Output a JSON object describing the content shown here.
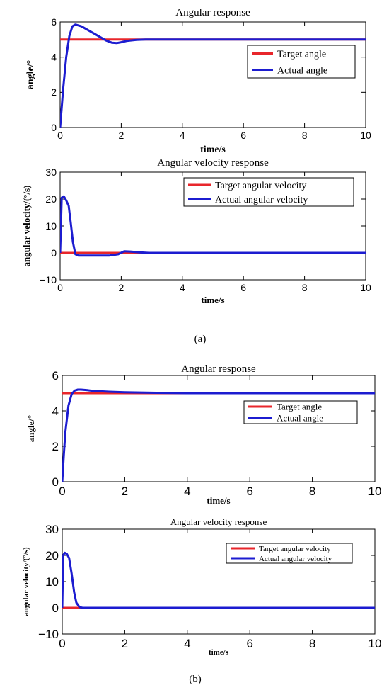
{
  "captions": [
    "(a)",
    "(b)"
  ],
  "chart_data": [
    {
      "panel": "(a)",
      "type": "line",
      "title": "Angular response",
      "xlabel": "time/s",
      "ylabel": "angle/°",
      "xlim": [
        0,
        10
      ],
      "ylim": [
        0,
        6
      ],
      "xticks": [
        "0",
        "2",
        "4",
        "6",
        "8",
        "10"
      ],
      "yticks": [
        "0",
        "2",
        "4",
        "6"
      ],
      "grid": false,
      "legend": "top-right",
      "series": [
        {
          "name": "Target angle",
          "color": "#e8262b",
          "x": [
            0,
            10
          ],
          "y": [
            5,
            5
          ]
        },
        {
          "name": "Actual angle",
          "color": "#1c1cd0",
          "x": [
            0,
            0.1,
            0.2,
            0.3,
            0.4,
            0.5,
            0.7,
            0.9,
            1.1,
            1.3,
            1.5,
            1.7,
            1.85,
            2.0,
            2.2,
            2.5,
            2.8,
            3.2,
            10
          ],
          "y": [
            0,
            2.2,
            4.0,
            5.2,
            5.75,
            5.85,
            5.75,
            5.55,
            5.35,
            5.15,
            4.95,
            4.82,
            4.8,
            4.85,
            4.93,
            4.98,
            5.0,
            5.0,
            5.0
          ]
        }
      ]
    },
    {
      "panel": "(a)",
      "type": "line",
      "title": "Angular velocity response",
      "xlabel": "time/s",
      "ylabel": "angular velocity/(°/s)",
      "xlim": [
        0,
        10
      ],
      "ylim": [
        -10,
        30
      ],
      "xticks": [
        "0",
        "2",
        "4",
        "6",
        "8",
        "10"
      ],
      "yticks": [
        "−10",
        "0",
        "10",
        "20",
        "30"
      ],
      "grid": false,
      "legend": "top-right",
      "series": [
        {
          "name": "Target angular velocity",
          "color": "#e8262b",
          "x": [
            0,
            10
          ],
          "y": [
            0,
            0
          ]
        },
        {
          "name": "Actual angular velocity",
          "color": "#1c1cd0",
          "x": [
            0,
            0.05,
            0.12,
            0.2,
            0.28,
            0.35,
            0.42,
            0.5,
            0.6,
            0.8,
            1.2,
            1.6,
            1.9,
            2.1,
            2.3,
            2.6,
            2.9,
            10
          ],
          "y": [
            0,
            20.5,
            21,
            19.5,
            17.5,
            11,
            4,
            -0.5,
            -1,
            -1,
            -1,
            -1,
            -0.5,
            0.6,
            0.5,
            0.2,
            0,
            0
          ]
        }
      ]
    },
    {
      "panel": "(b)",
      "type": "line",
      "title": "Angular response",
      "xlabel": "time/s",
      "ylabel": "angle/°",
      "xlim": [
        0,
        10
      ],
      "ylim": [
        0,
        6
      ],
      "xticks": [
        "0",
        "2",
        "4",
        "6",
        "8",
        "10"
      ],
      "yticks": [
        "0",
        "2",
        "4",
        "6"
      ],
      "grid": false,
      "legend": "top-right",
      "series": [
        {
          "name": "Target angle",
          "color": "#e8262b",
          "x": [
            0,
            10
          ],
          "y": [
            5,
            5
          ]
        },
        {
          "name": "Actual angle",
          "color": "#1c1cd0",
          "x": [
            0,
            0.05,
            0.1,
            0.2,
            0.3,
            0.4,
            0.5,
            0.6,
            0.8,
            1.0,
            1.5,
            2.0,
            3.0,
            4.0,
            10
          ],
          "y": [
            0,
            1.5,
            2.8,
            4.3,
            4.95,
            5.15,
            5.2,
            5.2,
            5.17,
            5.13,
            5.08,
            5.05,
            5.02,
            5.0,
            5.0
          ]
        }
      ]
    },
    {
      "panel": "(b)",
      "type": "line",
      "title": "Angular velocity response",
      "xlabel": "time/s",
      "ylabel": "angular velocity/(°/s)",
      "xlim": [
        0,
        10
      ],
      "ylim": [
        -10,
        30
      ],
      "xticks": [
        "0",
        "2",
        "4",
        "6",
        "8",
        "10"
      ],
      "yticks": [
        "−10",
        "0",
        "10",
        "20",
        "30"
      ],
      "grid": false,
      "legend": "top-right",
      "series": [
        {
          "name": "Target angular velocity",
          "color": "#e8262b",
          "x": [
            0,
            10
          ],
          "y": [
            0,
            0
          ]
        },
        {
          "name": "Actual angular velocity",
          "color": "#1c1cd0",
          "x": [
            0,
            0.03,
            0.08,
            0.15,
            0.22,
            0.3,
            0.38,
            0.45,
            0.55,
            0.65,
            10
          ],
          "y": [
            0,
            20,
            21,
            20.5,
            19,
            13,
            6,
            2,
            0.3,
            0,
            0
          ]
        }
      ]
    }
  ]
}
